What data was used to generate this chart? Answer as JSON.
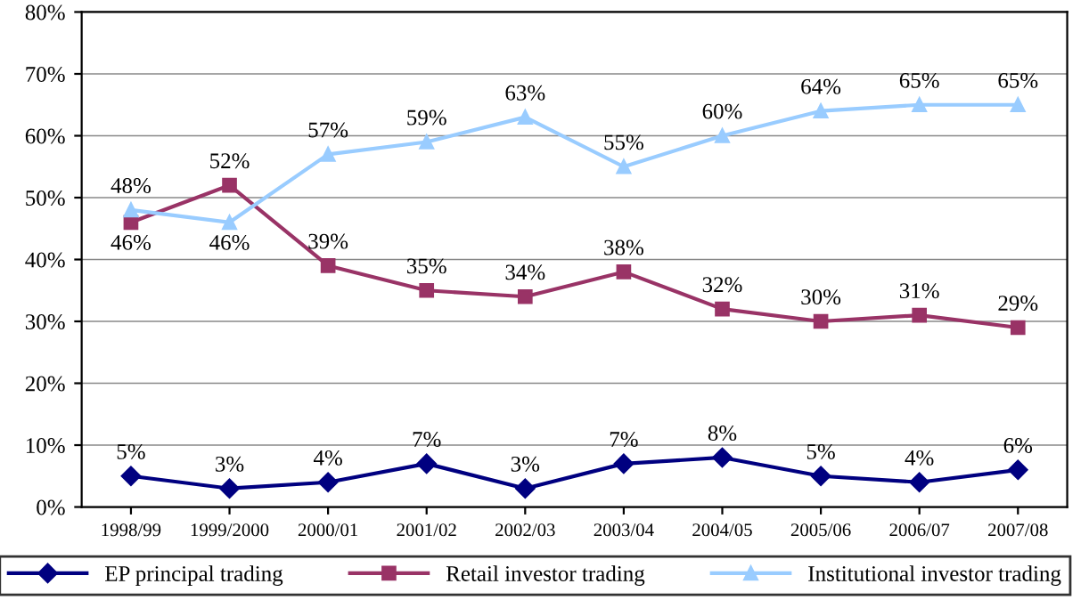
{
  "chart_data": {
    "type": "line",
    "categories": [
      "1998/99",
      "1999/2000",
      "2000/01",
      "2001/02",
      "2002/03",
      "2003/04",
      "2004/05",
      "2005/06",
      "2006/07",
      "2007/08"
    ],
    "series": [
      {
        "name": "EP principal trading",
        "color": "#000080",
        "marker": "diamond",
        "values": [
          5,
          3,
          4,
          7,
          3,
          7,
          8,
          5,
          4,
          6
        ],
        "value_labels": [
          "5%",
          "3%",
          "4%",
          "7%",
          "3%",
          "7%",
          "8%",
          "5%",
          "4%",
          "6%"
        ]
      },
      {
        "name": "Retail investor trading",
        "color": "#993366",
        "marker": "square",
        "values": [
          46,
          52,
          39,
          35,
          34,
          38,
          32,
          30,
          31,
          29
        ],
        "value_labels": [
          "46%",
          "52%",
          "39%",
          "35%",
          "34%",
          "38%",
          "32%",
          "30%",
          "31%",
          "29%"
        ]
      },
      {
        "name": "Institutional investor trading",
        "color": "#99ccff",
        "marker": "triangle",
        "values": [
          48,
          46,
          57,
          59,
          63,
          55,
          60,
          64,
          65,
          65
        ],
        "value_labels": [
          "48%",
          "46%",
          "57%",
          "59%",
          "63%",
          "55%",
          "60%",
          "64%",
          "65%",
          "65%"
        ]
      }
    ],
    "ylim": [
      0,
      80
    ],
    "yticks": [
      {
        "value": 0,
        "label": "0%"
      },
      {
        "value": 10,
        "label": "10%"
      },
      {
        "value": 20,
        "label": "20%"
      },
      {
        "value": 30,
        "label": "30%"
      },
      {
        "value": 40,
        "label": "40%"
      },
      {
        "value": 50,
        "label": "50%"
      },
      {
        "value": 60,
        "label": "60%"
      },
      {
        "value": 70,
        "label": "70%"
      },
      {
        "value": 80,
        "label": "80%"
      }
    ],
    "grid": "y",
    "legend": "bottom"
  }
}
